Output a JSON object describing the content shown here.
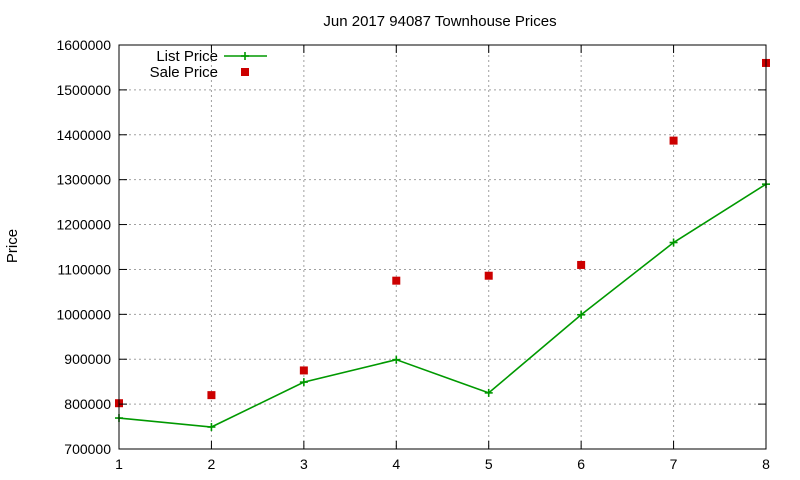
{
  "chart_data": {
    "type": "line",
    "title": "Jun 2017 94087 Townhouse Prices",
    "xlabel": "",
    "ylabel": "Price",
    "xlim": [
      1,
      8
    ],
    "ylim": [
      700000,
      1600000
    ],
    "x_ticks": [
      1,
      2,
      3,
      4,
      5,
      6,
      7,
      8
    ],
    "y_ticks": [
      700000,
      800000,
      900000,
      1000000,
      1100000,
      1200000,
      1300000,
      1400000,
      1500000,
      1600000
    ],
    "grid": true,
    "legend_position": "top-left",
    "series": [
      {
        "name": "List Price",
        "kind": "line-points",
        "marker": "plus",
        "color": "#009900",
        "x": [
          1,
          2,
          3,
          4,
          5,
          6,
          7,
          8
        ],
        "values": [
          769000,
          749000,
          849000,
          899000,
          825000,
          999000,
          1160000,
          1290000
        ]
      },
      {
        "name": "Sale Price",
        "kind": "points",
        "marker": "square",
        "color": "#cc0000",
        "x": [
          1,
          2,
          3,
          4,
          5,
          6,
          7,
          8
        ],
        "values": [
          802000,
          820000,
          875000,
          1075000,
          1086000,
          1110000,
          1387000,
          1560000
        ]
      }
    ]
  }
}
